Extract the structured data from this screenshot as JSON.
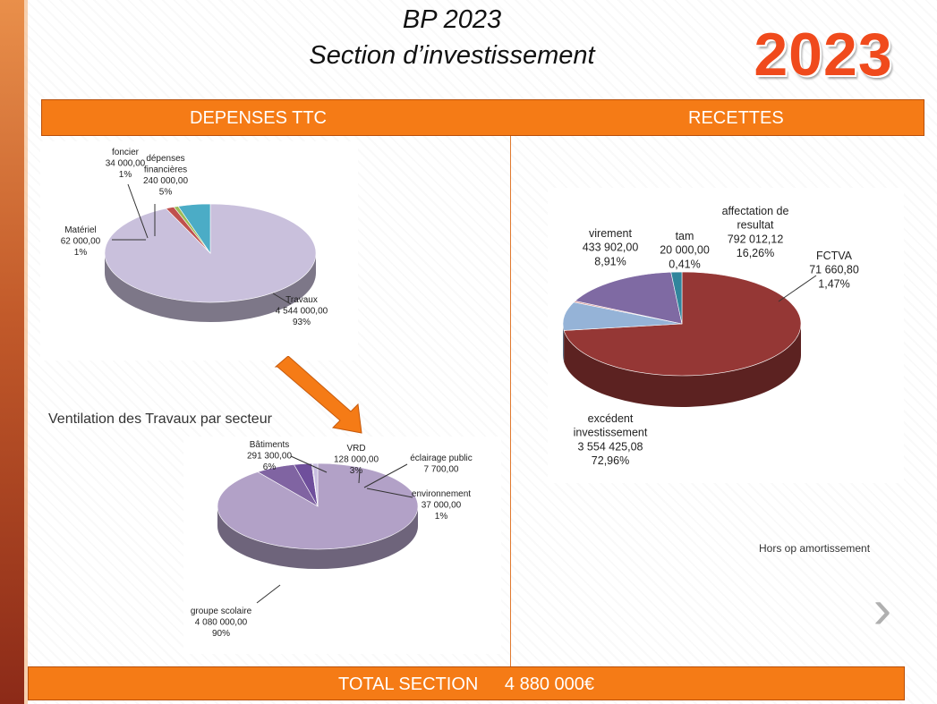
{
  "header": {
    "title_line1": "BP 2023",
    "title_line2": "Section d’investissement",
    "year_badge": "2023"
  },
  "banner": {
    "left_label": "DEPENSES    TTC",
    "right_label": "RECETTES"
  },
  "subtitle": "Ventilation des Travaux par secteur",
  "note": "Hors op amortissement",
  "total": {
    "label": "TOTAL SECTION",
    "value": "4 880 000€"
  },
  "icons": {
    "next": "chevron-right-icon",
    "arrow": "down-arrow-icon"
  },
  "colors": {
    "accent": "#f57b16",
    "year": "#f04a1c",
    "travaux": "#c9c0dc",
    "materiel": "#c0504d",
    "foncier": "#9bbb59",
    "depenses_fin": "#4bacc6",
    "excedent": "#953735",
    "virement": "#95b3d7",
    "tam": "#d99694",
    "affectation": "#7f6aa3",
    "fctva": "#31859c",
    "groupe": "#b2a1c7",
    "batiments": "#8064a2",
    "vrd": "#6f4f9c",
    "eclairage": "#a08cc0",
    "environnement": "#c8bde0"
  },
  "chart_data": [
    {
      "type": "pie",
      "title": "",
      "slices": [
        {
          "key": "travaux",
          "label": "Travaux",
          "value": 4544000,
          "value_text": "4 544 000,00",
          "pct": "93%"
        },
        {
          "key": "materiel",
          "label": "Matériel",
          "value": 62000,
          "value_text": "62 000,00",
          "pct": "1%"
        },
        {
          "key": "foncier",
          "label": "foncier",
          "value": 34000,
          "value_text": "34 000,00",
          "pct": "1%"
        },
        {
          "key": "depenses_fin",
          "label": "dépenses financières",
          "label_lines": [
            "dépenses",
            "financières"
          ],
          "value": 240000,
          "value_text": "240 000,00",
          "pct": "5%"
        }
      ]
    },
    {
      "type": "pie",
      "title": "",
      "slices": [
        {
          "key": "excedent",
          "label": "excédent investissement",
          "label_lines": [
            "excédent",
            "investissement"
          ],
          "value": 3554425.08,
          "value_text": "3 554 425,08",
          "pct": "72,96%"
        },
        {
          "key": "virement",
          "label": "virement",
          "value": 433902,
          "value_text": "433 902,00",
          "pct": "8,91%"
        },
        {
          "key": "tam",
          "label": "tam",
          "value": 20000,
          "value_text": "20 000,00",
          "pct": "0,41%"
        },
        {
          "key": "affectation",
          "label": "affectation de resultat",
          "label_lines": [
            "affectation de",
            "resultat"
          ],
          "value": 792012.12,
          "value_text": "792 012,12",
          "pct": "16,26%"
        },
        {
          "key": "fctva",
          "label": "FCTVA",
          "value": 71660.8,
          "value_text": "71 660,80",
          "pct": "1,47%"
        }
      ]
    },
    {
      "type": "pie",
      "title": "",
      "slices": [
        {
          "key": "groupe",
          "label": "groupe scolaire",
          "value": 4080000,
          "value_text": "4 080 000,00",
          "pct": "90%"
        },
        {
          "key": "batiments",
          "label": "Bâtiments",
          "value": 291300,
          "value_text": "291 300,00",
          "pct": "6%"
        },
        {
          "key": "vrd",
          "label": "VRD",
          "value": 128000,
          "value_text": "128 000,00",
          "pct": "3%"
        },
        {
          "key": "eclairage",
          "label": "éclairage public",
          "value": 7700,
          "value_text": "7 700,00",
          "pct": ""
        },
        {
          "key": "environnement",
          "label": "environnement",
          "value": 37000,
          "value_text": "37 000,00",
          "pct": "1%"
        }
      ]
    }
  ]
}
